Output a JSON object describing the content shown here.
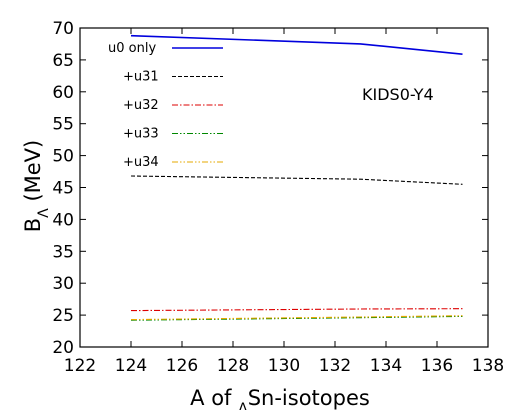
{
  "chart_data": {
    "type": "line",
    "title": "",
    "xlabel": "A of ΛSn-isotopes",
    "ylabel": "BΛ (MeV)",
    "xlim": [
      122,
      138
    ],
    "ylim": [
      20,
      70
    ],
    "xticks": [
      122,
      124,
      126,
      128,
      130,
      132,
      134,
      136,
      138
    ],
    "yticks": [
      20,
      25,
      30,
      35,
      40,
      45,
      50,
      55,
      60,
      65,
      70
    ],
    "grid": false,
    "legend_position": "top-left",
    "annotation": "KIDS0-Y4",
    "series": [
      {
        "name": "u0 only",
        "color": "#0000dd",
        "dash": "solid",
        "x": [
          124,
          133,
          137
        ],
        "y": [
          68.8,
          67.5,
          65.9
        ]
      },
      {
        "name": "+u31",
        "color": "#000000",
        "dash": "dashed",
        "x": [
          124,
          133,
          137
        ],
        "y": [
          46.8,
          46.3,
          45.5
        ]
      },
      {
        "name": "+u32",
        "color": "#dd0000",
        "dash": "dashdot",
        "x": [
          124,
          133,
          137
        ],
        "y": [
          25.7,
          25.95,
          26.0
        ]
      },
      {
        "name": "+u33",
        "color": "#008800",
        "dash": "dashdotdot",
        "x": [
          124,
          133,
          137
        ],
        "y": [
          24.2,
          24.6,
          24.8
        ]
      },
      {
        "name": "+u34",
        "color": "#e6a800",
        "dash": "dashdotdot",
        "x": [
          124,
          133,
          137
        ],
        "y": [
          24.3,
          24.7,
          24.9
        ]
      }
    ]
  }
}
